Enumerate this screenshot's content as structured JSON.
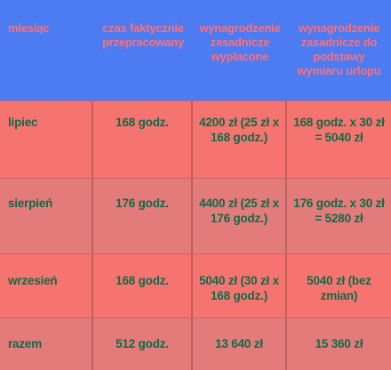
{
  "headers": [
    "miesiąc",
    "czas faktycznie przepracowany",
    "wynagrodzenie zasadnicze wypłacone",
    "wynagrodzenie zasadnicze do podstawy wymiaru urlopu"
  ],
  "rows": [
    {
      "month": "lipiec",
      "hours": "168 godz.",
      "paid": "4200 zł (25 zł x 168 godz.)",
      "base": "168 godz. x 30 zł = 5040 zł"
    },
    {
      "month": "sierpień",
      "hours": "176 godz.",
      "paid": "4400 zł (25 zł x 176 godz.)",
      "base": "176 godz. x 30 zł = 5280 zł"
    },
    {
      "month": "wrzesień",
      "hours": "168 godz.",
      "paid": "5040 zł (30 zł x 168 godz.)",
      "base": "5040 zł (bez zmian)"
    },
    {
      "month": "razem",
      "hours": "512 godz.",
      "paid": "13 640 zł",
      "base": "15 360 zł"
    }
  ],
  "colors": {
    "header_bg": "#4d7bf2",
    "header_text": "#ff6f76",
    "row_bg": "#f6746f",
    "row_alt_bg": "#e27b7a",
    "cell_text": "#0e6b4a"
  }
}
